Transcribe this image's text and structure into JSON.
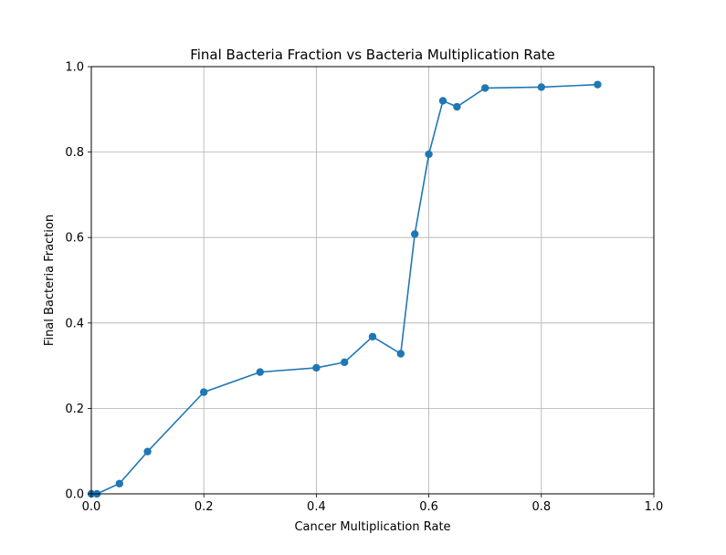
{
  "chart_data": {
    "type": "line",
    "title": "Final Bacteria Fraction vs Bacteria Multiplication Rate",
    "xlabel": "Cancer Multiplication Rate",
    "ylabel": "Final Bacteria Fraction",
    "xlim": [
      0.0,
      1.0
    ],
    "ylim": [
      0.0,
      1.0
    ],
    "xticks": [
      "0.0",
      "0.2",
      "0.4",
      "0.6",
      "0.8",
      "1.0"
    ],
    "yticks": [
      "0.0",
      "0.2",
      "0.4",
      "0.6",
      "0.8",
      "1.0"
    ],
    "grid": true,
    "markers": "circle",
    "series": [
      {
        "color": "#1f77b4",
        "x": [
          0.0,
          0.01,
          0.05,
          0.1,
          0.2,
          0.3,
          0.4,
          0.45,
          0.5,
          0.55,
          0.575,
          0.6,
          0.625,
          0.65,
          0.7,
          0.8,
          0.9
        ],
        "y": [
          0.0,
          0.0,
          0.024,
          0.099,
          0.238,
          0.285,
          0.295,
          0.308,
          0.368,
          0.328,
          0.608,
          0.795,
          0.92,
          0.906,
          0.95,
          0.952,
          0.958
        ]
      }
    ]
  }
}
